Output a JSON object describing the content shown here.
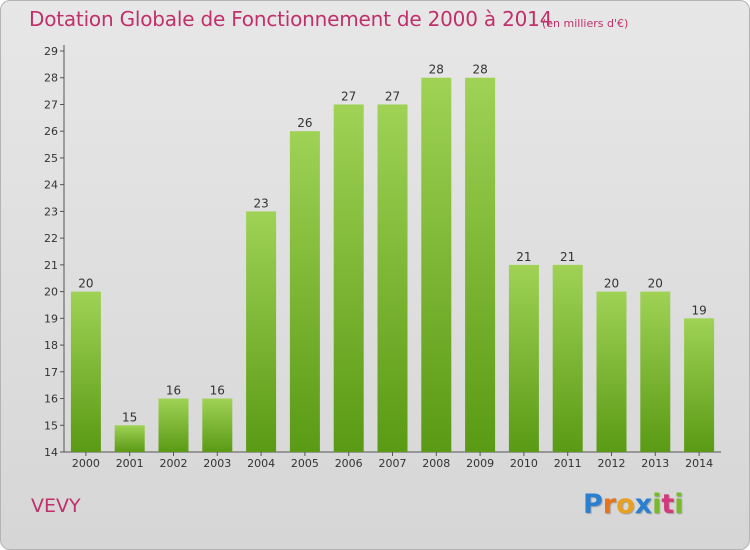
{
  "title": "Dotation Globale de Fonctionnement de 2000 à 2014",
  "subtitle": "(en milliers d'€)",
  "commune": "VEVY",
  "logo": {
    "text": "Proxiti",
    "letter_colors": [
      "#2b7fd0",
      "#e8731a",
      "#e8a020",
      "#2b7fd0",
      "#7ab82e",
      "#d33a7a",
      "#7ab82e"
    ]
  },
  "colors": {
    "bar_top": "#9fd255",
    "bar_bottom": "#5a9a14",
    "title": "#c0306a"
  },
  "chart_data": {
    "type": "bar",
    "categories": [
      "2000",
      "2001",
      "2002",
      "2003",
      "2004",
      "2005",
      "2006",
      "2007",
      "2008",
      "2009",
      "2010",
      "2011",
      "2012",
      "2013",
      "2014"
    ],
    "values": [
      20,
      15,
      16,
      16,
      23,
      26,
      27,
      27,
      28,
      28,
      21,
      21,
      20,
      20,
      19
    ],
    "data_labels": [
      "20",
      "15",
      "16",
      "16",
      "23",
      "26",
      "27",
      "27",
      "28",
      "28",
      "21",
      "21",
      "20",
      "20",
      "19"
    ],
    "ylim": [
      14,
      29
    ],
    "yticks": [
      14,
      15,
      16,
      17,
      18,
      19,
      20,
      21,
      22,
      23,
      24,
      25,
      26,
      27,
      28,
      29
    ],
    "ytick_labels": [
      "14",
      "15",
      "16",
      "17",
      "18",
      "19",
      "20",
      "21",
      "22",
      "23",
      "24",
      "25",
      "26",
      "27",
      "28",
      "29"
    ],
    "grid": false,
    "title": "Dotation Globale de Fonctionnement de 2000 à 2014",
    "xlabel": "",
    "ylabel": ""
  }
}
